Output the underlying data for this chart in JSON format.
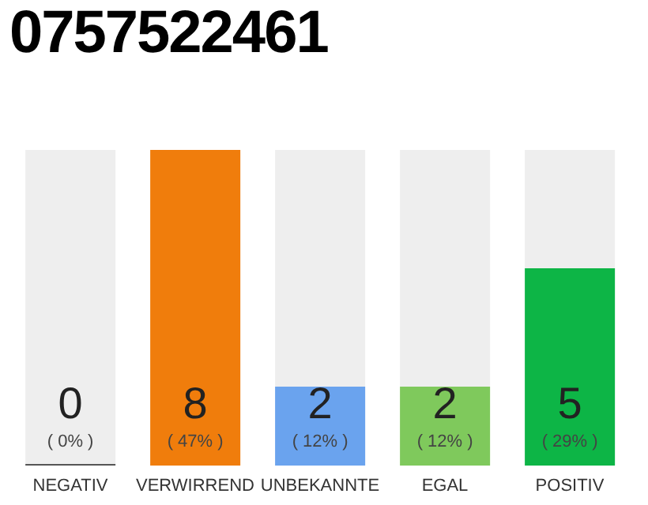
{
  "chart_data": {
    "type": "bar",
    "title": "0757522461",
    "categories": [
      "NEGATIV",
      "VERWIRREND",
      "UNBEKANNTE",
      "EGAL",
      "POSITIV"
    ],
    "values": [
      0,
      8,
      2,
      2,
      5
    ],
    "colors": [
      "#555555",
      "#f07d0c",
      "#6aa3ee",
      "#7fc95c",
      "#0db546"
    ],
    "data_labels": true,
    "tick_labels": "x",
    "annotations": [
      "( 0% )",
      "( 47% )",
      "( 12% )",
      "( 12% )",
      "( 29% )"
    ]
  }
}
